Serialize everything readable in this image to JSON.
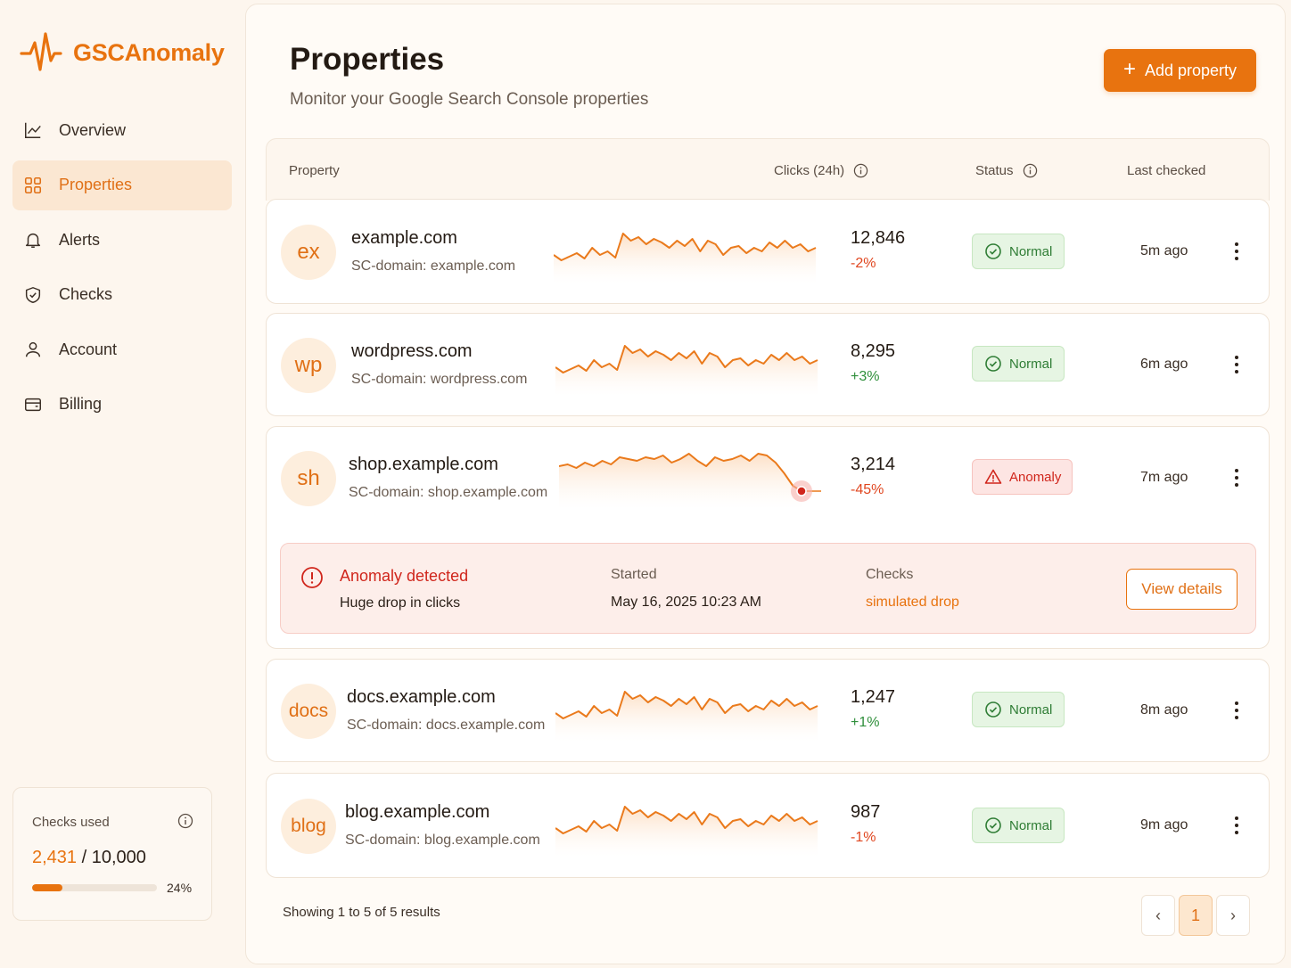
{
  "app": {
    "name": "GSCAnomaly",
    "accent_color": "#e8730f"
  },
  "sidebar": {
    "items": [
      {
        "label": "Overview",
        "icon": "chart-line-icon",
        "active": false
      },
      {
        "label": "Properties",
        "icon": "grid-icon",
        "active": true
      },
      {
        "label": "Alerts",
        "icon": "bell-icon",
        "active": false
      },
      {
        "label": "Checks",
        "icon": "shield-check-icon",
        "active": false
      },
      {
        "label": "Account",
        "icon": "user-icon",
        "active": false
      },
      {
        "label": "Billing",
        "icon": "wallet-icon",
        "active": false
      }
    ],
    "usage": {
      "title": "Checks used",
      "used": "2,431",
      "total": " / 10,000",
      "percent_label": "24%",
      "fraction": 0.24
    }
  },
  "header": {
    "title": "Properties",
    "subtitle": "Monitor your Google Search Console properties",
    "add_button": "Add property"
  },
  "table": {
    "columns": {
      "property": "Property",
      "clicks": "Clicks (24h)",
      "status": "Status",
      "last_checked": "Last checked"
    },
    "rows": [
      {
        "avatar": "ex",
        "name": "example.com",
        "domain": "SC-domain: example.com",
        "clicks": "12,846",
        "delta": "-2%",
        "delta_type": "neg",
        "status": "Normal",
        "last_checked": "5m ago",
        "trend": "normal"
      },
      {
        "avatar": "wp",
        "name": "wordpress.com",
        "domain": "SC-domain: wordpress.com",
        "clicks": "8,295",
        "delta": "+3%",
        "delta_type": "pos",
        "status": "Normal",
        "last_checked": "6m ago",
        "trend": "normal"
      },
      {
        "avatar": "sh",
        "name": "shop.example.com",
        "domain": "SC-domain: shop.example.com",
        "clicks": "3,214",
        "delta": "-45%",
        "delta_type": "neg",
        "status": "Anomaly",
        "last_checked": "7m ago",
        "trend": "drop"
      },
      {
        "avatar": "docs",
        "name": "docs.example.com",
        "domain": "SC-domain: docs.example.com",
        "clicks": "1,247",
        "delta": "+1%",
        "delta_type": "pos",
        "status": "Normal",
        "last_checked": "8m ago",
        "trend": "normal"
      },
      {
        "avatar": "blog",
        "name": "blog.example.com",
        "domain": "SC-domain: blog.example.com",
        "clicks": "987",
        "delta": "-1%",
        "delta_type": "neg",
        "status": "Normal",
        "last_checked": "9m ago",
        "trend": "normal"
      }
    ],
    "anomaly": {
      "title": "Anomaly detected",
      "description": "Huge drop in clicks",
      "started_label": "Started",
      "started_value": "May 16, 2025 10:23 AM",
      "checks_label": "Checks",
      "checks_value": "simulated drop",
      "button": "View details"
    }
  },
  "footer": {
    "showing": "Showing 1 to 5 of 5 results",
    "current_page": "1",
    "prev_icon": "chevron-left-icon",
    "next_icon": "chevron-right-icon"
  },
  "colors": {
    "normal_bg": "#e6f5e3",
    "normal_text": "#2f7d35",
    "anomaly_bg": "#fde5e3",
    "anomaly_text": "#d0261c",
    "positive": "#2f8f3b",
    "negative": "#e0461f"
  }
}
